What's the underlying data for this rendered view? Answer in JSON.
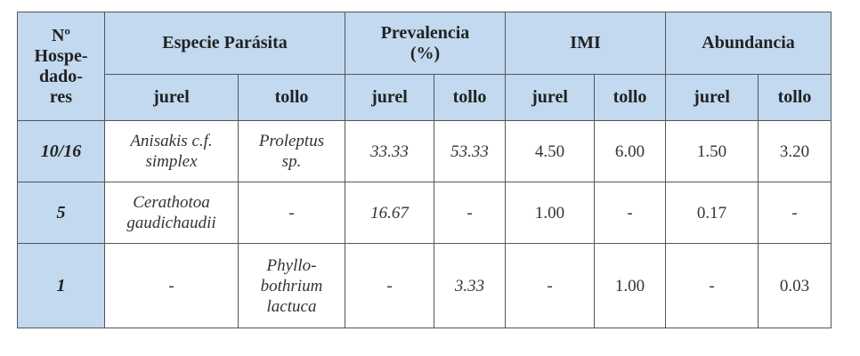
{
  "header": {
    "host": [
      "Nº",
      "Hospe-",
      "dado-",
      "res"
    ],
    "groups": [
      [
        "Especie Parásita"
      ],
      [
        "Prevalencia",
        "(%)"
      ],
      [
        "IMI"
      ],
      [
        "Abundancia"
      ]
    ],
    "sub": [
      "jurel",
      "tollo",
      "jurel",
      "tollo",
      "jurel",
      "tollo",
      "jurel",
      "tollo"
    ]
  },
  "rows": [
    {
      "host": "10/16",
      "cells": [
        [
          "Anisakis c.f.",
          "simplex"
        ],
        [
          "Proleptus",
          "sp."
        ],
        [
          "33.33"
        ],
        [
          "53.33"
        ],
        [
          "4.50"
        ],
        [
          "6.00"
        ],
        [
          "1.50"
        ],
        [
          "3.20"
        ]
      ]
    },
    {
      "host": "5",
      "cells": [
        [
          "Cerathotoa",
          "gaudichaudii"
        ],
        [
          "-"
        ],
        [
          "16.67"
        ],
        [
          "-"
        ],
        [
          "1.00"
        ],
        [
          "-"
        ],
        [
          "0.17"
        ],
        [
          "-"
        ]
      ]
    },
    {
      "host": "1",
      "cells": [
        [
          "-"
        ],
        [
          "Phyllo-",
          "bothrium",
          "lactuca"
        ],
        [
          "-"
        ],
        [
          "3.33"
        ],
        [
          "-"
        ],
        [
          "1.00"
        ],
        [
          "-"
        ],
        [
          "0.03"
        ]
      ]
    }
  ]
}
